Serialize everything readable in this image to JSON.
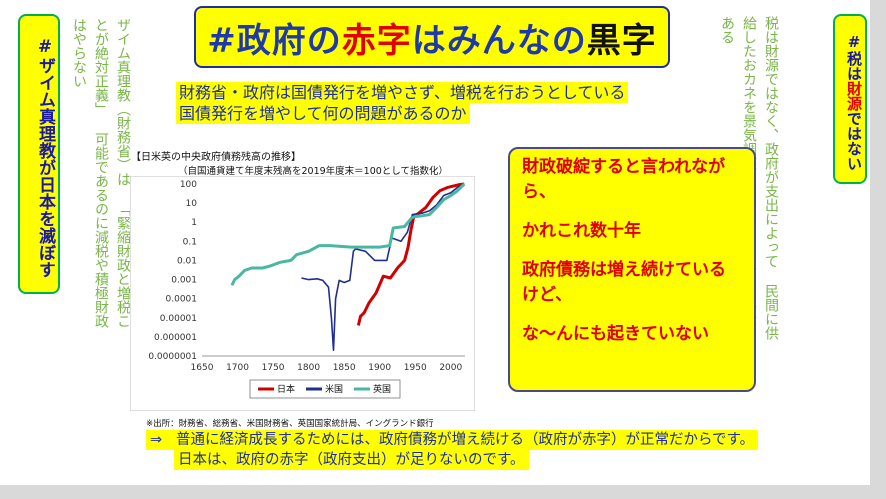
{
  "title": {
    "part1": "#政府の",
    "part2": "赤字",
    "part3": "はみんなの",
    "part4": "黒字"
  },
  "left_badge": {
    "text": "#ザイム真理教が日本を滅ぼす"
  },
  "left_note": {
    "lines": [
      "ザイム真理教（財務省）は",
      "「緊縮財政と増税ことが絶対正義」",
      "可能であるのに減税や積極財政はやらない"
    ]
  },
  "right_badge": {
    "part1": "#税は",
    "part2": "財源",
    "part3": "ではない"
  },
  "right_note": {
    "lines": [
      "税は財源ではなく、政府が支出によって",
      "民間に供給したおカネを景気調整のために",
      "回収する手段である"
    ]
  },
  "question": {
    "line1": "財務省・政府は国債発行を増やさず、増税を行おうとしている",
    "line2": "国債発行を増やして何の問題があるのか"
  },
  "chart_header": {
    "title": "【日米英の中央政府債務残高の推移】",
    "subtitle": "（自国通貨建て年度末残高を2019年度末＝100として指数化）"
  },
  "chart_data": {
    "type": "line",
    "y_scale": "log",
    "ylim": [
      1e-07,
      100
    ],
    "xlim": [
      1650,
      2020
    ],
    "y_ticks": [
      "100",
      "10",
      "1",
      "0.1",
      "0.01",
      "0.001",
      "0.0001",
      "0.00001",
      "0.000001",
      "0.0000001"
    ],
    "x_ticks": [
      "1650",
      "1700",
      "1750",
      "1800",
      "1850",
      "1900",
      "1950",
      "2000"
    ],
    "legend_position": "bottom",
    "series": [
      {
        "name": "日本",
        "color": "#d00000",
        "points": [
          [
            1870,
            4e-06
          ],
          [
            1873,
            1.2e-05
          ],
          [
            1878,
            1.8e-05
          ],
          [
            1885,
            6e-05
          ],
          [
            1895,
            0.0002
          ],
          [
            1905,
            0.0015
          ],
          [
            1915,
            0.0012
          ],
          [
            1925,
            0.004
          ],
          [
            1935,
            0.01
          ],
          [
            1940,
            0.05
          ],
          [
            1944,
            0.4
          ],
          [
            1948,
            2
          ],
          [
            1955,
            3
          ],
          [
            1965,
            6
          ],
          [
            1975,
            20
          ],
          [
            1985,
            45
          ],
          [
            1995,
            65
          ],
          [
            2010,
            90
          ],
          [
            2019,
            100
          ]
        ]
      },
      {
        "name": "米国",
        "color": "#1f2f8f",
        "points": [
          [
            1790,
            0.0012
          ],
          [
            1800,
            0.001
          ],
          [
            1812,
            0.0011
          ],
          [
            1820,
            0.0009
          ],
          [
            1828,
            0.0004
          ],
          [
            1832,
            1e-05
          ],
          [
            1835,
            2e-07
          ],
          [
            1838,
            0.0001
          ],
          [
            1843,
            0.0009
          ],
          [
            1850,
            0.0007
          ],
          [
            1858,
            0.0009
          ],
          [
            1863,
            0.03
          ],
          [
            1866,
            0.04
          ],
          [
            1880,
            0.03
          ],
          [
            1893,
            0.01
          ],
          [
            1910,
            0.01
          ],
          [
            1917,
            0.15
          ],
          [
            1930,
            0.1
          ],
          [
            1939,
            0.3
          ],
          [
            1946,
            2.5
          ],
          [
            1960,
            3
          ],
          [
            1970,
            4
          ],
          [
            1980,
            8
          ],
          [
            1990,
            25
          ],
          [
            2000,
            35
          ],
          [
            2010,
            70
          ],
          [
            2019,
            100
          ]
        ]
      },
      {
        "name": "英国",
        "color": "#4ab8a0",
        "points": [
          [
            1692,
            0.0005
          ],
          [
            1696,
            0.001
          ],
          [
            1702,
            0.0015
          ],
          [
            1710,
            0.003
          ],
          [
            1720,
            0.004
          ],
          [
            1735,
            0.004
          ],
          [
            1745,
            0.005
          ],
          [
            1760,
            0.008
          ],
          [
            1775,
            0.01
          ],
          [
            1783,
            0.02
          ],
          [
            1800,
            0.03
          ],
          [
            1815,
            0.06
          ],
          [
            1830,
            0.06
          ],
          [
            1860,
            0.05
          ],
          [
            1880,
            0.05
          ],
          [
            1900,
            0.05
          ],
          [
            1914,
            0.06
          ],
          [
            1919,
            0.5
          ],
          [
            1935,
            0.6
          ],
          [
            1945,
            1.7
          ],
          [
            1950,
            2
          ],
          [
            1960,
            2.2
          ],
          [
            1970,
            2.5
          ],
          [
            1980,
            6
          ],
          [
            1990,
            15
          ],
          [
            2000,
            25
          ],
          [
            2008,
            40
          ],
          [
            2019,
            100
          ]
        ]
      }
    ]
  },
  "source": "※出所：財務省、総務省、米国財務省、英国国家統計局、イングランド銀行",
  "callout": {
    "p1": "財政破綻すると言われながら、",
    "p2": "かれこれ数十年",
    "p3": "政府債務は増え続けているけど、",
    "p4": "な〜んにも起きていない"
  },
  "conclusion": {
    "arrow": "⇒",
    "line1": "普通に経済成長するためには、政府債務が増え続ける（政府が赤字）が正常だからです。",
    "line2": "日本は、政府の赤字（政府支出）が足りないのです。"
  }
}
